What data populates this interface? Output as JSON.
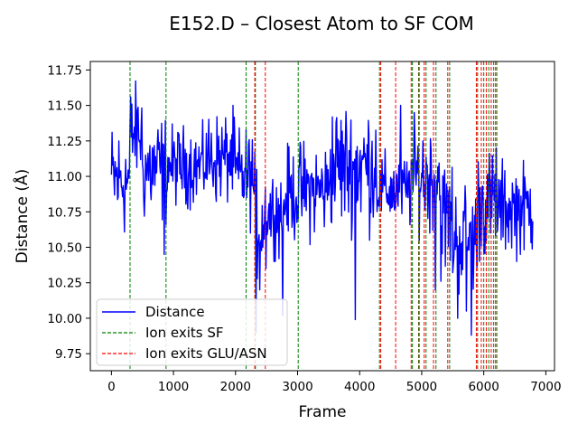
{
  "chart_data": {
    "type": "line",
    "title": "E152.D – Closest Atom to SF COM",
    "xlabel": "Frame",
    "ylabel": "Distance (Å)",
    "xlim": [
      -340,
      7140
    ],
    "ylim": [
      9.63,
      11.81
    ],
    "x_ticks": [
      0,
      1000,
      2000,
      3000,
      4000,
      5000,
      6000,
      7000
    ],
    "x_tick_labels": [
      "0",
      "1000",
      "2000",
      "3000",
      "4000",
      "5000",
      "6000",
      "7000"
    ],
    "y_ticks": [
      9.75,
      10.0,
      10.25,
      10.5,
      10.75,
      11.0,
      11.25,
      11.5,
      11.75
    ],
    "y_tick_labels": [
      "9.75",
      "10.00",
      "10.25",
      "10.50",
      "10.75",
      "11.00",
      "11.25",
      "11.50",
      "11.75"
    ],
    "grid": false,
    "legend_position": "lower-left",
    "series": [
      {
        "name": "Distance",
        "color": "#0000ff",
        "frames": [
          0,
          6800
        ],
        "segments": [
          {
            "x": [
              0,
              300
            ],
            "lo": 10.5,
            "hi": 11.45
          },
          {
            "x": [
              300,
              500
            ],
            "lo": 10.9,
            "hi": 11.7
          },
          {
            "x": [
              500,
              900
            ],
            "lo": 10.6,
            "hi": 11.5
          },
          {
            "x": [
              900,
              1500
            ],
            "lo": 10.75,
            "hi": 11.4
          },
          {
            "x": [
              1500,
              2000
            ],
            "lo": 10.75,
            "hi": 11.5
          },
          {
            "x": [
              2000,
              2300
            ],
            "lo": 10.6,
            "hi": 11.4
          },
          {
            "x": [
              2300,
              2500
            ],
            "lo": 10.2,
            "hi": 11.2
          },
          {
            "x": [
              2500,
              2800
            ],
            "lo": 10.4,
            "hi": 11.1
          },
          {
            "x": [
              2800,
              3000
            ],
            "lo": 10.5,
            "hi": 11.25
          },
          {
            "x": [
              3000,
              3500
            ],
            "lo": 10.5,
            "hi": 11.3
          },
          {
            "x": [
              3500,
              4300
            ],
            "lo": 10.55,
            "hi": 11.6
          },
          {
            "x": [
              4300,
              4800
            ],
            "lo": 10.6,
            "hi": 11.2
          },
          {
            "x": [
              4800,
              5300
            ],
            "lo": 10.55,
            "hi": 11.45
          },
          {
            "x": [
              5300,
              5500
            ],
            "lo": 10.2,
            "hi": 11.2
          },
          {
            "x": [
              5500,
              5900
            ],
            "lo": 10.1,
            "hi": 11.05
          },
          {
            "x": [
              5900,
              6200
            ],
            "lo": 10.35,
            "hi": 11.25
          },
          {
            "x": [
              6200,
              6800
            ],
            "lo": 10.4,
            "hi": 11.15
          }
        ],
        "spikes": [
          {
            "x": 850,
            "y": 10.45
          },
          {
            "x": 2330,
            "y": 9.9
          },
          {
            "x": 2390,
            "y": 10.2
          },
          {
            "x": 2760,
            "y": 10.02
          },
          {
            "x": 3930,
            "y": 9.99
          },
          {
            "x": 5220,
            "y": 10.2
          },
          {
            "x": 5580,
            "y": 10.0
          },
          {
            "x": 5720,
            "y": 10.05
          },
          {
            "x": 5800,
            "y": 9.88
          },
          {
            "x": 6200,
            "y": 11.2
          },
          {
            "x": 4660,
            "y": 11.5
          }
        ]
      },
      {
        "name": "Ion exits SF",
        "color": "#008000",
        "style": "dashed",
        "x": [
          300,
          880,
          2170,
          2320,
          3010,
          4320,
          4850,
          4950,
          5070,
          5230,
          5450,
          5900,
          6000,
          6080,
          6160,
          6210
        ]
      },
      {
        "name": "Ion exits GLU/ASN",
        "color": "#ff0000",
        "style": "dashed",
        "x": [
          2310,
          2480,
          4340,
          4580,
          4830,
          4960,
          5040,
          5190,
          5420,
          5880,
          5960,
          6040,
          6120,
          6190
        ]
      }
    ]
  }
}
